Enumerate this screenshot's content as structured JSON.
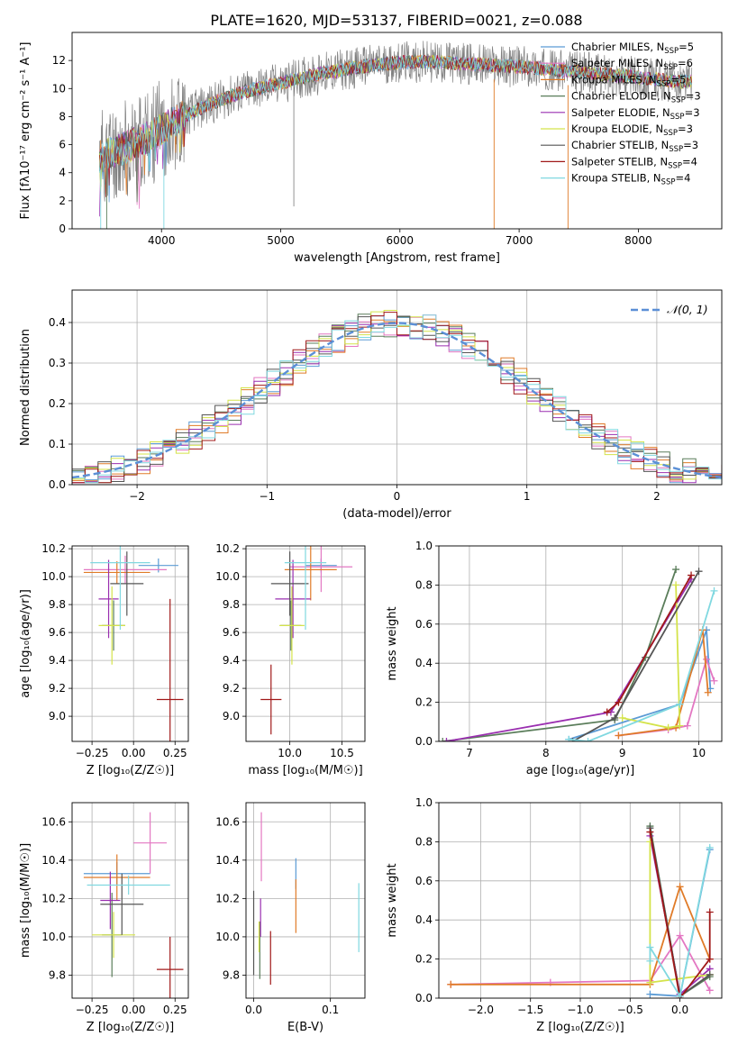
{
  "figure": {
    "title": "PLATE=1620, MJD=53137, FIBERID=0021, z=0.088"
  },
  "colors": {
    "Chabrier MILES": "#5b9bd5",
    "Salpeter MILES": "#e377c2",
    "Kroupa MILES": "#e07b28",
    "Chabrier ELODIE": "#5a7d5a",
    "Salpeter ELODIE": "#9a2fb0",
    "Kroupa ELODIE": "#d4e34a",
    "Chabrier STELIB": "#555555",
    "Salpeter STELIB": "#a01818",
    "Kroupa STELIB": "#80d8e0",
    "data": "#808080",
    "grid": "#b0b0b0",
    "normal": "#5b8fd6"
  },
  "chart_data": [
    {
      "id": "spectrum",
      "type": "line",
      "title": "PLATE=1620, MJD=53137, FIBERID=0021, z=0.088",
      "xlabel": "wavelength [Angstrom, rest frame]",
      "ylabel": "Flux [fλ10⁻¹⁷ erg cm⁻² s⁻¹ A⁻¹]",
      "xlim": [
        3250,
        8700
      ],
      "ylim": [
        0,
        14
      ],
      "xticks": [
        4000,
        5000,
        6000,
        7000,
        8000
      ],
      "yticks": [
        0,
        2,
        4,
        6,
        8,
        10,
        12
      ],
      "grid": false,
      "legend_position": "right",
      "continuum_x": [
        3500,
        3700,
        3900,
        4100,
        4300,
        4500,
        4700,
        4900,
        5100,
        5300,
        5500,
        5700,
        5900,
        6100,
        6300,
        6500,
        6700,
        6900,
        7100,
        7300,
        7500,
        7700,
        7900,
        8100,
        8300
      ],
      "continuum_y": [
        5.2,
        5.8,
        6.6,
        7.6,
        8.5,
        9.2,
        9.8,
        10.2,
        10.6,
        11.0,
        11.3,
        11.6,
        11.8,
        11.9,
        11.9,
        11.8,
        11.7,
        11.6,
        11.5,
        11.3,
        11.2,
        11.0,
        10.9,
        10.7,
        10.5
      ],
      "legend": [
        {
          "label": "Chabrier MILES, N",
          "sub": "SSP",
          "val": "=5",
          "model": "Chabrier MILES"
        },
        {
          "label": "Salpeter MILES, N",
          "sub": "SSP",
          "val": "=6",
          "model": "Salpeter MILES"
        },
        {
          "label": "Kroupa MILES, N",
          "sub": "SSP",
          "val": "=5",
          "model": "Kroupa MILES"
        },
        {
          "label": "Chabrier ELODIE, N",
          "sub": "SSP",
          "val": "=3",
          "model": "Chabrier ELODIE"
        },
        {
          "label": "Salpeter ELODIE, N",
          "sub": "SSP",
          "val": "=3",
          "model": "Salpeter ELODIE"
        },
        {
          "label": "Kroupa ELODIE, N",
          "sub": "SSP",
          "val": "=3",
          "model": "Kroupa ELODIE"
        },
        {
          "label": "Chabrier STELIB, N",
          "sub": "SSP",
          "val": "=3",
          "model": "Chabrier STELIB"
        },
        {
          "label": "Salpeter STELIB, N",
          "sub": "SSP",
          "val": "=4",
          "model": "Salpeter STELIB"
        },
        {
          "label": "Kroupa STELIB, N",
          "sub": "SSP",
          "val": "=4",
          "model": "Kroupa STELIB"
        }
      ]
    },
    {
      "id": "residuals",
      "type": "histogram",
      "xlabel": "(data-model)/error",
      "ylabel": "Normed distribution",
      "xlim": [
        -2.5,
        2.5
      ],
      "ylim": [
        0,
        0.48
      ],
      "xticks": [
        -2,
        -1,
        0,
        1,
        2
      ],
      "xticklabels": [
        "−2",
        "−1",
        "0",
        "1",
        "2"
      ],
      "yticks": [
        0.0,
        0.1,
        0.2,
        0.3,
        0.4
      ],
      "yticklabels": [
        "0.0",
        "0.1",
        "0.2",
        "0.3",
        "0.4"
      ],
      "grid": true,
      "legend": "𝒩(0, 1)",
      "legend_position": "top-right",
      "bin_width": 0.1
    },
    {
      "id": "age-vs-Z",
      "type": "errorbar",
      "xlabel": "Z [log₁₀(Z/Z☉)]",
      "ylabel": "age  [log₁₀(age/yr)]",
      "xlim": [
        -0.37,
        0.33
      ],
      "ylim": [
        8.82,
        10.22
      ],
      "xticks": [
        -0.25,
        0.0,
        0.25
      ],
      "xticklabels": [
        "−0.25",
        "0.00",
        "0.25"
      ],
      "yticks": [
        9.0,
        9.2,
        9.4,
        9.6,
        9.8,
        10.0,
        10.2
      ],
      "yticklabels": [
        "9.0",
        "9.2",
        "9.4",
        "9.6",
        "9.8",
        "10.0",
        "10.2"
      ],
      "grid": true,
      "points": [
        {
          "model": "Chabrier MILES",
          "x": 0.15,
          "xe": 0.12,
          "y": 10.08,
          "ye": 0.05
        },
        {
          "model": "Salpeter MILES",
          "x": -0.05,
          "xe": 0.25,
          "y": 10.05,
          "ye": 0.1
        },
        {
          "model": "Kroupa MILES",
          "x": -0.1,
          "xe": 0.2,
          "y": 10.03,
          "ye": 0.08
        },
        {
          "model": "Chabrier ELODIE",
          "x": -0.12,
          "xe": 0.07,
          "y": 9.65,
          "ye": 0.18
        },
        {
          "model": "Salpeter ELODIE",
          "x": -0.15,
          "xe": 0.06,
          "y": 9.84,
          "ye": 0.28
        },
        {
          "model": "Kroupa ELODIE",
          "x": -0.13,
          "xe": 0.08,
          "y": 9.65,
          "ye": 0.28
        },
        {
          "model": "Chabrier STELIB",
          "x": -0.04,
          "xe": 0.1,
          "y": 9.95,
          "ye": 0.23
        },
        {
          "model": "Salpeter STELIB",
          "x": 0.22,
          "xe": 0.08,
          "y": 9.12,
          "ye": 0.72
        },
        {
          "model": "Kroupa STELIB",
          "x": -0.08,
          "xe": 0.18,
          "y": 10.1,
          "ye": 0.48
        }
      ]
    },
    {
      "id": "age-vs-mass",
      "type": "errorbar",
      "xlabel": "mass [log₁₀(M/M☉)]",
      "ylabel": "",
      "xlim": [
        9.58,
        10.72
      ],
      "ylim": [
        8.82,
        10.22
      ],
      "xticks": [
        10.0,
        10.5
      ],
      "xticklabels": [
        "10.0",
        "10.5"
      ],
      "yticks": [
        9.0,
        9.2,
        9.4,
        9.6,
        9.8,
        10.0,
        10.2
      ],
      "yticklabels": [
        "9.0",
        "9.2",
        "9.4",
        "9.6",
        "9.8",
        "10.0",
        "10.2"
      ],
      "grid": true,
      "points": [
        {
          "model": "Chabrier MILES",
          "x": 10.3,
          "xe": 0.15,
          "y": 10.08,
          "ye": 0.05
        },
        {
          "model": "Salpeter MILES",
          "x": 10.3,
          "xe": 0.3,
          "y": 10.07,
          "ye": 0.18
        },
        {
          "model": "Kroupa MILES",
          "x": 10.2,
          "xe": 0.25,
          "y": 10.05,
          "ye": 0.22
        },
        {
          "model": "Chabrier ELODIE",
          "x": 10.01,
          "xe": 0.1,
          "y": 9.65,
          "ye": 0.18
        },
        {
          "model": "Salpeter ELODIE",
          "x": 10.03,
          "xe": 0.17,
          "y": 9.84,
          "ye": 0.28
        },
        {
          "model": "Kroupa ELODIE",
          "x": 10.02,
          "xe": 0.12,
          "y": 9.65,
          "ye": 0.28
        },
        {
          "model": "Chabrier STELIB",
          "x": 10.0,
          "xe": 0.18,
          "y": 9.95,
          "ye": 0.23
        },
        {
          "model": "Salpeter STELIB",
          "x": 9.82,
          "xe": 0.1,
          "y": 9.12,
          "ye": 0.25
        },
        {
          "model": "Kroupa STELIB",
          "x": 10.15,
          "xe": 0.2,
          "y": 10.1,
          "ye": 0.48
        }
      ]
    },
    {
      "id": "mass-weight-vs-age",
      "type": "line",
      "xlabel": "age  [log₁₀(age/yr)]",
      "ylabel": "mass weight",
      "xlim": [
        6.6,
        10.3
      ],
      "ylim": [
        0,
        1
      ],
      "xticks": [
        7,
        8,
        9,
        10
      ],
      "yticks": [
        0.0,
        0.2,
        0.4,
        0.6,
        0.8,
        1.0
      ],
      "yticklabels": [
        "0.0",
        "0.2",
        "0.4",
        "0.6",
        "0.8",
        "1.0"
      ],
      "grid": true,
      "series": [
        {
          "model": "Chabrier MILES",
          "x": [
            8.3,
            9.75,
            10.1,
            10.15
          ],
          "y": [
            0.01,
            0.19,
            0.57,
            0.27
          ]
        },
        {
          "model": "Salpeter MILES",
          "x": [
            8.95,
            9.6,
            9.85,
            10.1,
            10.2
          ],
          "y": [
            0.03,
            0.06,
            0.08,
            0.42,
            0.31
          ]
        },
        {
          "model": "Kroupa MILES",
          "x": [
            8.95,
            9.7,
            10.05,
            10.12
          ],
          "y": [
            0.03,
            0.07,
            0.57,
            0.25
          ]
        },
        {
          "model": "Chabrier ELODIE",
          "x": [
            6.65,
            8.9,
            9.3,
            9.7
          ],
          "y": [
            0.0,
            0.11,
            0.43,
            0.88
          ]
        },
        {
          "model": "Salpeter ELODIE",
          "x": [
            6.7,
            8.85,
            9.9
          ],
          "y": [
            0.0,
            0.15,
            0.83
          ]
        },
        {
          "model": "Kroupa ELODIE",
          "x": [
            9.0,
            9.6,
            9.75,
            9.7
          ],
          "y": [
            0.12,
            0.07,
            0.08,
            0.8
          ]
        },
        {
          "model": "Chabrier STELIB",
          "x": [
            8.35,
            8.9,
            10.0
          ],
          "y": [
            0.0,
            0.12,
            0.87
          ]
        },
        {
          "model": "Salpeter STELIB",
          "x": [
            8.8,
            8.95,
            9.9
          ],
          "y": [
            0.15,
            0.2,
            0.85
          ]
        },
        {
          "model": "Kroupa STELIB",
          "x": [
            8.3,
            8.55,
            9.75,
            10.2
          ],
          "y": [
            0.01,
            0.0,
            0.19,
            0.77
          ]
        }
      ]
    },
    {
      "id": "mass-vs-Z",
      "type": "errorbar",
      "xlabel": "Z [log₁₀(Z/Z☉)]",
      "ylabel": "mass [log₁₀(M/M☉)]",
      "xlim": [
        -0.37,
        0.33
      ],
      "ylim": [
        9.68,
        10.7
      ],
      "xticks": [
        -0.25,
        0.0,
        0.25
      ],
      "xticklabels": [
        "−0.25",
        "0.00",
        "0.25"
      ],
      "yticks": [
        9.8,
        10.0,
        10.2,
        10.4,
        10.6
      ],
      "yticklabels": [
        "9.8",
        "10.0",
        "10.2",
        "10.4",
        "10.6"
      ],
      "grid": true,
      "points": [
        {
          "model": "Chabrier MILES",
          "x": -0.1,
          "xe": 0.2,
          "y": 10.33,
          "ye": 0.06
        },
        {
          "model": "Salpeter MILES",
          "x": 0.1,
          "xe": 0.1,
          "y": 10.49,
          "ye": 0.16
        },
        {
          "model": "Kroupa MILES",
          "x": -0.1,
          "xe": 0.2,
          "y": 10.31,
          "ye": 0.12
        },
        {
          "model": "Chabrier ELODIE",
          "x": -0.13,
          "xe": 0.06,
          "y": 10.01,
          "ye": 0.22
        },
        {
          "model": "Salpeter ELODIE",
          "x": -0.14,
          "xe": 0.06,
          "y": 10.19,
          "ye": 0.15
        },
        {
          "model": "Kroupa ELODIE",
          "x": -0.12,
          "xe": 0.13,
          "y": 10.01,
          "ye": 0.12
        },
        {
          "model": "Chabrier STELIB",
          "x": -0.07,
          "xe": 0.13,
          "y": 10.17,
          "ye": 0.16
        },
        {
          "model": "Salpeter STELIB",
          "x": 0.22,
          "xe": 0.08,
          "y": 9.83,
          "ye": 0.17
        },
        {
          "model": "Kroupa STELIB",
          "x": -0.03,
          "xe": 0.25,
          "y": 10.27,
          "ye": 0.05
        }
      ]
    },
    {
      "id": "mass-vs-EBV",
      "type": "errorbar",
      "xlabel": "E(B-V)",
      "ylabel": "",
      "xlim": [
        -0.01,
        0.145
      ],
      "ylim": [
        9.68,
        10.7
      ],
      "xticks": [
        0.0,
        0.1
      ],
      "xticklabels": [
        "0.0",
        "0.1"
      ],
      "yticks": [
        9.8,
        10.0,
        10.2,
        10.4,
        10.6
      ],
      "yticklabels": [
        "9.8",
        "10.0",
        "10.2",
        "10.4",
        "10.6"
      ],
      "grid": true,
      "points": [
        {
          "model": "Chabrier MILES",
          "x": 0.055,
          "xe": 0.0,
          "y": 10.33,
          "ye": 0.08
        },
        {
          "model": "Salpeter MILES",
          "x": 0.01,
          "xe": 0.0,
          "y": 10.47,
          "ye": 0.18
        },
        {
          "model": "Kroupa MILES",
          "x": 0.055,
          "xe": 0.0,
          "y": 10.16,
          "ye": 0.14
        },
        {
          "model": "Chabrier ELODIE",
          "x": 0.008,
          "xe": 0.0,
          "y": 9.93,
          "ye": 0.15
        },
        {
          "model": "Salpeter ELODIE",
          "x": 0.009,
          "xe": 0.0,
          "y": 10.1,
          "ye": 0.1
        },
        {
          "model": "Kroupa ELODIE",
          "x": 0.007,
          "xe": 0.0,
          "y": 10.0,
          "ye": 0.08
        },
        {
          "model": "Chabrier STELIB",
          "x": 0.0,
          "xe": 0.0,
          "y": 10.02,
          "ye": 0.22
        },
        {
          "model": "Salpeter STELIB",
          "x": 0.022,
          "xe": 0.0,
          "y": 9.89,
          "ye": 0.14
        },
        {
          "model": "Kroupa STELIB",
          "x": 0.137,
          "xe": 0.0,
          "y": 10.1,
          "ye": 0.18
        }
      ]
    },
    {
      "id": "mass-weight-vs-Z",
      "type": "line",
      "xlabel": "Z [log₁₀(Z/Z☉)]",
      "ylabel": "mass weight",
      "xlim": [
        -2.42,
        0.42
      ],
      "ylim": [
        0,
        1
      ],
      "xticks": [
        -2.0,
        -1.5,
        -1.0,
        -0.5,
        0.0
      ],
      "xticklabels": [
        "−2.0",
        "−1.5",
        "−1.0",
        "−0.5",
        "0.0"
      ],
      "yticks": [
        0.0,
        0.2,
        0.4,
        0.6,
        0.8,
        1.0
      ],
      "yticklabels": [
        "0.0",
        "0.2",
        "0.4",
        "0.6",
        "0.8",
        "1.0"
      ],
      "grid": true,
      "series": [
        {
          "model": "Chabrier MILES",
          "x": [
            -0.3,
            0.0,
            0.3
          ],
          "y": [
            0.02,
            0.01,
            0.76
          ]
        },
        {
          "model": "Salpeter MILES",
          "x": [
            -2.3,
            -1.3,
            -0.3,
            0.0,
            0.3
          ],
          "y": [
            0.07,
            0.08,
            0.09,
            0.32,
            0.04
          ]
        },
        {
          "model": "Kroupa MILES",
          "x": [
            -2.3,
            -0.3,
            0.0,
            0.3
          ],
          "y": [
            0.07,
            0.07,
            0.57,
            0.2
          ]
        },
        {
          "model": "Chabrier ELODIE",
          "x": [
            -0.3,
            0.0,
            0.3
          ],
          "y": [
            0.88,
            0.01,
            0.11
          ]
        },
        {
          "model": "Salpeter ELODIE",
          "x": [
            -0.3,
            0.0,
            0.3
          ],
          "y": [
            0.83,
            0.02,
            0.15
          ]
        },
        {
          "model": "Kroupa ELODIE",
          "x": [
            -0.3,
            -0.3,
            0.3
          ],
          "y": [
            0.8,
            0.08,
            0.12
          ]
        },
        {
          "model": "Chabrier STELIB",
          "x": [
            -0.3,
            0.0,
            0.3
          ],
          "y": [
            0.87,
            0.01,
            0.12
          ]
        },
        {
          "model": "Salpeter STELIB",
          "x": [
            -0.3,
            0.0,
            0.3,
            0.3
          ],
          "y": [
            0.85,
            0.0,
            0.2,
            0.44
          ]
        },
        {
          "model": "Kroupa STELIB",
          "x": [
            -0.3,
            -0.3,
            0.0,
            0.3
          ],
          "y": [
            0.19,
            0.26,
            0.01,
            0.77
          ]
        }
      ]
    }
  ]
}
